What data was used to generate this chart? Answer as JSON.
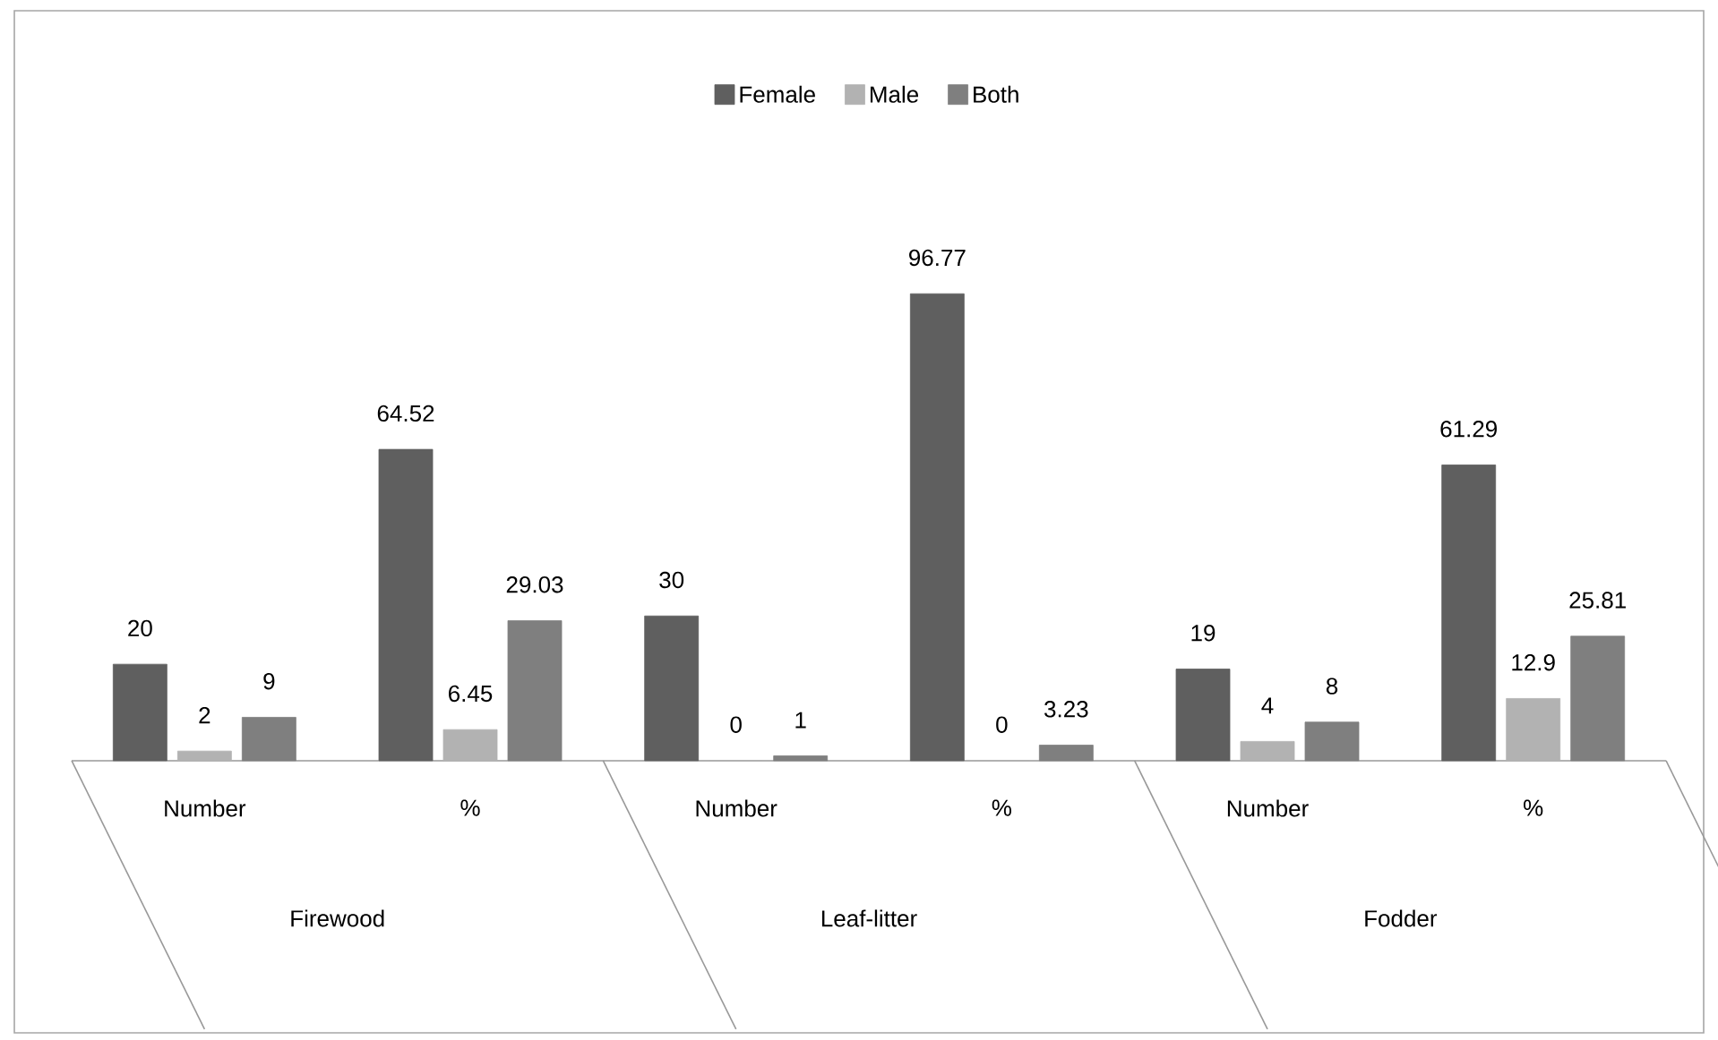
{
  "chart_data": {
    "type": "bar",
    "categories": [
      "Number",
      "%",
      "Number",
      "%",
      "Number",
      "%"
    ],
    "series": [
      {
        "name": "Female",
        "color": "#5f5f5f",
        "values": [
          20,
          64.52,
          30,
          96.77,
          19,
          61.29
        ]
      },
      {
        "name": "Male",
        "color": "#b2b2b2",
        "values": [
          2,
          6.45,
          0,
          0,
          4,
          12.9
        ]
      },
      {
        "name": "Both",
        "color": "#7f7f7f",
        "values": [
          9,
          29.03,
          1,
          3.23,
          8,
          25.81
        ]
      }
    ],
    "annotations": [
      "Firewood",
      "Leaf-litter",
      "Fodder"
    ],
    "data_labels": true,
    "legend": "top"
  }
}
